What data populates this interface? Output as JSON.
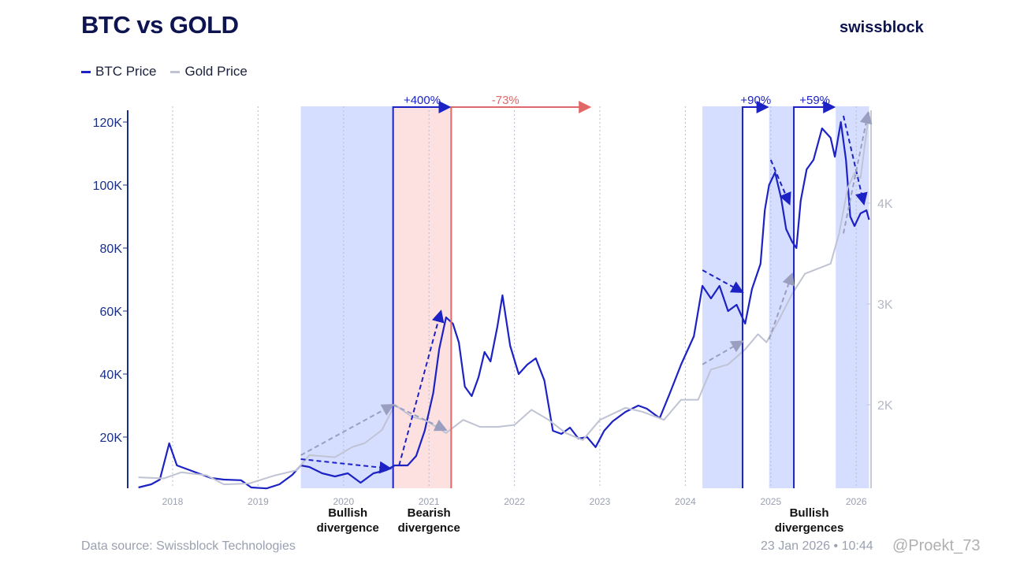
{
  "header": {
    "title": "BTC vs GOLD",
    "brand": "swissblock"
  },
  "legend": [
    {
      "label": "BTC Price",
      "color": "#1c22c4"
    },
    {
      "label": "Gold Price",
      "color": "#bfc3d3"
    }
  ],
  "footer": {
    "source": "Data source: Swissblock Technologies",
    "timestamp": "23 Jan 2026 • 10:44",
    "watermark": "@Proekt_73"
  },
  "chart_data": {
    "type": "line",
    "title": "BTC vs GOLD",
    "x_ticks": [
      "2018",
      "2019",
      "2020",
      "2021",
      "2022",
      "2023",
      "2024",
      "2025",
      "2026"
    ],
    "y_left": {
      "ticks": [
        "20K",
        "40K",
        "60K",
        "80K",
        "100K",
        "120K"
      ],
      "values": [
        20,
        40,
        60,
        80,
        100,
        120
      ],
      "unit": "K"
    },
    "y_right": {
      "ticks": [
        "2K",
        "3K",
        "4K"
      ],
      "values": [
        2,
        3,
        4
      ],
      "unit": "K"
    },
    "series": [
      {
        "name": "BTC Price",
        "axis": "left",
        "color": "#1c22c4",
        "points": [
          [
            2017.6,
            4
          ],
          [
            2017.75,
            5
          ],
          [
            2017.85,
            6.5
          ],
          [
            2017.96,
            18
          ],
          [
            2018.05,
            11
          ],
          [
            2018.15,
            10
          ],
          [
            2018.3,
            8.5
          ],
          [
            2018.45,
            7
          ],
          [
            2018.6,
            6.5
          ],
          [
            2018.8,
            6.3
          ],
          [
            2018.92,
            4
          ],
          [
            2019.1,
            3.7
          ],
          [
            2019.25,
            5
          ],
          [
            2019.4,
            8
          ],
          [
            2019.5,
            11
          ],
          [
            2019.6,
            10.5
          ],
          [
            2019.75,
            8.5
          ],
          [
            2019.9,
            7.5
          ],
          [
            2020.05,
            8.5
          ],
          [
            2020.2,
            5.5
          ],
          [
            2020.35,
            8.5
          ],
          [
            2020.5,
            9.5
          ],
          [
            2020.6,
            11
          ],
          [
            2020.75,
            11
          ],
          [
            2020.85,
            14
          ],
          [
            2020.95,
            22
          ],
          [
            2021.05,
            34
          ],
          [
            2021.12,
            48
          ],
          [
            2021.2,
            58
          ],
          [
            2021.28,
            56
          ],
          [
            2021.35,
            50
          ],
          [
            2021.42,
            36
          ],
          [
            2021.5,
            33
          ],
          [
            2021.58,
            39
          ],
          [
            2021.65,
            47
          ],
          [
            2021.72,
            44
          ],
          [
            2021.8,
            55
          ],
          [
            2021.86,
            65
          ],
          [
            2021.95,
            49
          ],
          [
            2022.05,
            40
          ],
          [
            2022.15,
            43
          ],
          [
            2022.25,
            45
          ],
          [
            2022.35,
            38
          ],
          [
            2022.45,
            22
          ],
          [
            2022.55,
            21
          ],
          [
            2022.65,
            23
          ],
          [
            2022.75,
            19.5
          ],
          [
            2022.85,
            20
          ],
          [
            2022.95,
            16.8
          ],
          [
            2023.05,
            22
          ],
          [
            2023.15,
            25
          ],
          [
            2023.3,
            28
          ],
          [
            2023.45,
            30
          ],
          [
            2023.55,
            29
          ],
          [
            2023.7,
            26
          ],
          [
            2023.82,
            34
          ],
          [
            2023.95,
            43
          ],
          [
            2024.1,
            52
          ],
          [
            2024.2,
            68
          ],
          [
            2024.3,
            64
          ],
          [
            2024.4,
            68
          ],
          [
            2024.5,
            60
          ],
          [
            2024.6,
            62
          ],
          [
            2024.7,
            56
          ],
          [
            2024.78,
            67
          ],
          [
            2024.88,
            75
          ],
          [
            2024.93,
            92
          ],
          [
            2024.98,
            100
          ],
          [
            2025.05,
            104
          ],
          [
            2025.12,
            96
          ],
          [
            2025.18,
            86
          ],
          [
            2025.25,
            82
          ],
          [
            2025.3,
            80
          ],
          [
            2025.35,
            95
          ],
          [
            2025.42,
            105
          ],
          [
            2025.5,
            108
          ],
          [
            2025.6,
            118
          ],
          [
            2025.7,
            115
          ],
          [
            2025.75,
            109
          ],
          [
            2025.82,
            120
          ],
          [
            2025.88,
            108
          ],
          [
            2025.93,
            90
          ],
          [
            2025.98,
            87
          ],
          [
            2026.05,
            91
          ],
          [
            2026.12,
            92
          ],
          [
            2026.15,
            89
          ]
        ]
      },
      {
        "name": "Gold Price",
        "axis": "right",
        "color": "#bfc3d3",
        "points": [
          [
            2017.6,
            1.28
          ],
          [
            2017.9,
            1.27
          ],
          [
            2018.1,
            1.33
          ],
          [
            2018.4,
            1.3
          ],
          [
            2018.6,
            1.21
          ],
          [
            2018.9,
            1.22
          ],
          [
            2019.2,
            1.3
          ],
          [
            2019.45,
            1.35
          ],
          [
            2019.6,
            1.5
          ],
          [
            2019.9,
            1.48
          ],
          [
            2020.1,
            1.58
          ],
          [
            2020.25,
            1.62
          ],
          [
            2020.45,
            1.75
          ],
          [
            2020.6,
            2.0
          ],
          [
            2020.8,
            1.88
          ],
          [
            2020.95,
            1.85
          ],
          [
            2021.2,
            1.72
          ],
          [
            2021.4,
            1.85
          ],
          [
            2021.6,
            1.78
          ],
          [
            2021.8,
            1.78
          ],
          [
            2022.0,
            1.8
          ],
          [
            2022.2,
            1.95
          ],
          [
            2022.4,
            1.85
          ],
          [
            2022.6,
            1.72
          ],
          [
            2022.8,
            1.65
          ],
          [
            2023.0,
            1.85
          ],
          [
            2023.3,
            1.97
          ],
          [
            2023.5,
            1.93
          ],
          [
            2023.75,
            1.85
          ],
          [
            2023.95,
            2.05
          ],
          [
            2024.15,
            2.05
          ],
          [
            2024.3,
            2.35
          ],
          [
            2024.5,
            2.4
          ],
          [
            2024.7,
            2.55
          ],
          [
            2024.85,
            2.7
          ],
          [
            2024.95,
            2.62
          ],
          [
            2025.1,
            2.85
          ],
          [
            2025.25,
            3.1
          ],
          [
            2025.4,
            3.3
          ],
          [
            2025.55,
            3.35
          ],
          [
            2025.7,
            3.4
          ],
          [
            2025.8,
            3.7
          ],
          [
            2025.9,
            4.15
          ],
          [
            2025.98,
            4.3
          ],
          [
            2026.05,
            4.25
          ],
          [
            2026.15,
            4.9
          ]
        ]
      }
    ],
    "regions": [
      {
        "type": "bullish",
        "from": 2019.5,
        "to": 2020.58
      },
      {
        "type": "bearish",
        "from": 2020.58,
        "to": 2021.26
      },
      {
        "type": "bullish",
        "from": 2024.2,
        "to": 2024.67
      },
      {
        "type": "bullish",
        "from": 2024.98,
        "to": 2025.27
      },
      {
        "type": "bullish",
        "from": 2025.76,
        "to": 2026.15
      }
    ],
    "moves": [
      {
        "label": "+400%",
        "from": 2020.58,
        "to": 2021.26,
        "color": "#1c22c4"
      },
      {
        "label": "-73%",
        "from": 2021.26,
        "to": 2022.9,
        "color": "#e06868"
      },
      {
        "label": "+90%",
        "from": 2024.67,
        "to": 2024.98,
        "color": "#1c22c4"
      },
      {
        "label": "+59%",
        "from": 2025.27,
        "to": 2025.76,
        "color": "#1c22c4"
      }
    ],
    "divergence_arrows": [
      {
        "series": "BTC Price",
        "from": [
          2019.5,
          13
        ],
        "to": [
          2020.55,
          10
        ],
        "color": "#1c22c4"
      },
      {
        "series": "Gold Price",
        "from": [
          2019.5,
          1.5
        ],
        "to": [
          2020.58,
          2.0
        ],
        "color": "#9a9fc0"
      },
      {
        "series": "BTC Price",
        "from": [
          2020.65,
          11
        ],
        "to": [
          2021.14,
          60
        ],
        "color": "#1c22c4"
      },
      {
        "series": "Gold Price",
        "from": [
          2020.58,
          2.0
        ],
        "to": [
          2021.2,
          1.75
        ],
        "color": "#9a9fc0"
      },
      {
        "series": "BTC Price",
        "from": [
          2024.2,
          73
        ],
        "to": [
          2024.67,
          66
        ],
        "color": "#1c22c4"
      },
      {
        "series": "Gold Price",
        "from": [
          2024.2,
          2.4
        ],
        "to": [
          2024.67,
          2.63
        ],
        "color": "#9a9fc0"
      },
      {
        "series": "BTC Price",
        "from": [
          2025.0,
          108
        ],
        "to": [
          2025.22,
          94
        ],
        "color": "#1c22c4"
      },
      {
        "series": "Gold Price",
        "from": [
          2024.98,
          2.65
        ],
        "to": [
          2025.25,
          3.3
        ],
        "color": "#9a9fc0"
      },
      {
        "series": "BTC Price",
        "from": [
          2025.85,
          122
        ],
        "to": [
          2026.09,
          94
        ],
        "color": "#1c22c4"
      },
      {
        "series": "Gold Price",
        "from": [
          2025.85,
          3.7
        ],
        "to": [
          2026.14,
          4.9
        ],
        "color": "#9a9fc0"
      }
    ],
    "region_labels": [
      {
        "text": [
          "Bullish",
          "divergence"
        ],
        "at": 2020.05
      },
      {
        "text": [
          "Bearish",
          "divergence"
        ],
        "at": 2021.0
      },
      {
        "text": [
          "Bullish",
          "divergences"
        ],
        "at": 2025.45
      }
    ],
    "colors": {
      "bullish_fill": "#d6deff",
      "bearish_fill": "#fde0e0",
      "bearish_line": "#e06868"
    }
  }
}
